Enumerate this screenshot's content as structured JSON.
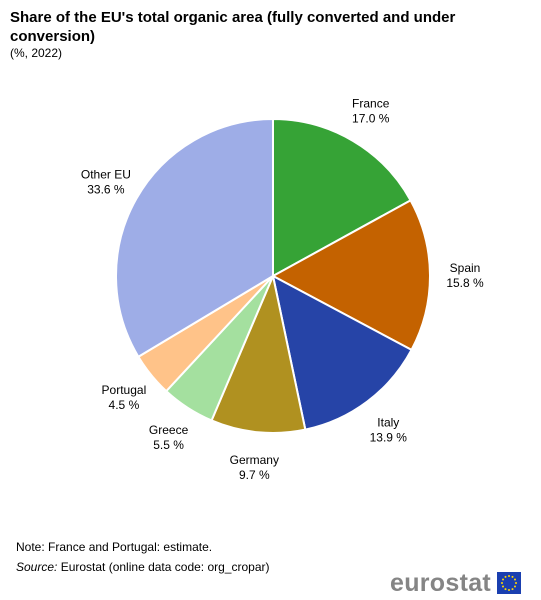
{
  "header": {
    "title": "Share of the EU's total organic area (fully converted and under conversion)",
    "subtitle": "(%, 2022)"
  },
  "chart_data": {
    "type": "pie",
    "title": "Share of the EU's total organic area (fully converted and under conversion)",
    "subtitle": "(%, 2022)",
    "value_suffix": " %",
    "slices": [
      {
        "label": "France",
        "value": 17.0,
        "color": "#36A336"
      },
      {
        "label": "Spain",
        "value": 15.8,
        "color": "#C46200"
      },
      {
        "label": "Italy",
        "value": 13.9,
        "color": "#2644A7"
      },
      {
        "label": "Germany",
        "value": 9.7,
        "color": "#B09120"
      },
      {
        "label": "Greece",
        "value": 5.5,
        "color": "#A4E09F"
      },
      {
        "label": "Portugal",
        "value": 4.5,
        "color": "#FFC389"
      },
      {
        "label": "Other EU",
        "value": 33.6,
        "color": "#9EADE7"
      }
    ]
  },
  "footer": {
    "note": "Note:  France and Portugal: estimate.",
    "source_prefix": "Source:",
    "source_text": " Eurostat (online data code: org_cropar)",
    "logo_text": "eurostat"
  }
}
